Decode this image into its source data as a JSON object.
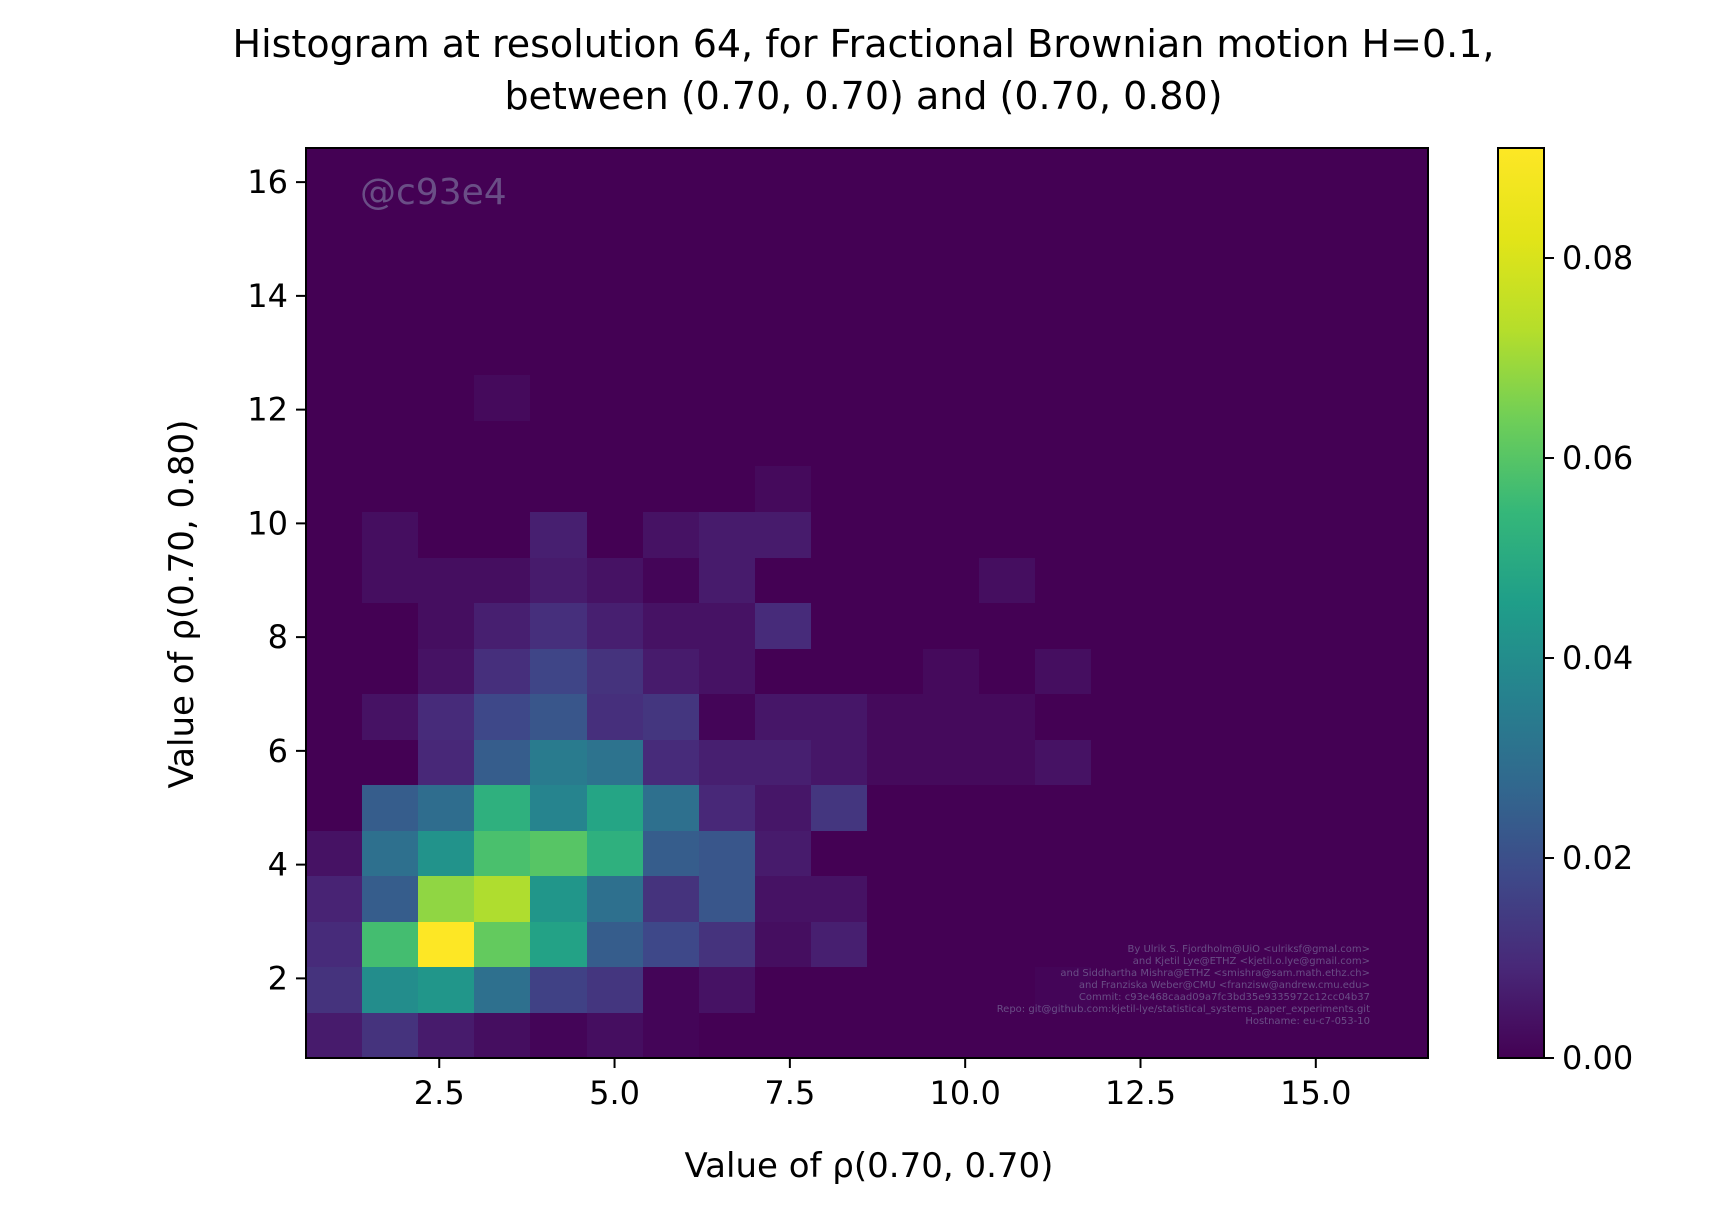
{
  "title_line1": "Histogram at resolution 64, for Fractional Brownian motion H=0.1,",
  "title_line2": "between (0.70, 0.70) and (0.70, 0.80)",
  "watermark": "@c93e4",
  "credits": [
    "By Ulrik S. Fjordholm@UiO <ulriksf@gmal.com>",
    "and Kjetil Lye@ETHZ <kjetil.o.lye@gmail.com>",
    "and Siddhartha Mishra@ETHZ <smishra@sam.math.ethz.ch>",
    "and Franziska Weber@CMU <franzisw@andrew.cmu.edu>",
    "Commit: c93e468caad09a7fc3bd35e9335972c12cc04b37",
    "Repo: git@github.com:kjetil-lye/statistical_systems_paper_experiments.git",
    "Hostname: eu-c7-053-10"
  ],
  "chart_data": {
    "type": "heatmap",
    "xlabel": "Value of ρ(0.70, 0.70)",
    "ylabel": "Value of ρ(0.70, 0.80)",
    "xlim": [
      0.6,
      16.6
    ],
    "ylim": [
      0.6,
      16.6
    ],
    "xticks": [
      "2.5",
      "5.0",
      "7.5",
      "10.0",
      "12.5",
      "15.0"
    ],
    "xtick_values": [
      2.5,
      5.0,
      7.5,
      10.0,
      12.5,
      15.0
    ],
    "yticks": [
      "2",
      "4",
      "6",
      "8",
      "10",
      "12",
      "14",
      "16"
    ],
    "ytick_values": [
      2,
      4,
      6,
      8,
      10,
      12,
      14,
      16
    ],
    "colorbar": {
      "range": [
        0.0,
        0.091
      ],
      "ticks": [
        "0.00",
        "0.02",
        "0.04",
        "0.06",
        "0.08"
      ],
      "tick_values": [
        0.0,
        0.02,
        0.04,
        0.06,
        0.08
      ],
      "colormap": "viridis"
    },
    "bin_width": 0.8,
    "x_bin_start": 0.6,
    "y_bin_start": 0.6,
    "cells": [
      [
        0,
        0,
        0.006
      ],
      [
        1,
        0,
        0.012
      ],
      [
        2,
        0,
        0.006
      ],
      [
        3,
        0,
        0.003
      ],
      [
        4,
        0,
        0.001
      ],
      [
        5,
        0,
        0.003
      ],
      [
        6,
        0,
        0.001
      ],
      [
        0,
        1,
        0.012
      ],
      [
        1,
        1,
        0.04
      ],
      [
        2,
        1,
        0.043
      ],
      [
        3,
        1,
        0.03
      ],
      [
        4,
        1,
        0.016
      ],
      [
        5,
        1,
        0.013
      ],
      [
        6,
        1,
        0.001
      ],
      [
        7,
        1,
        0.004
      ],
      [
        13,
        1,
        0.001
      ],
      [
        0,
        2,
        0.01
      ],
      [
        1,
        2,
        0.057
      ],
      [
        2,
        2,
        0.091
      ],
      [
        3,
        2,
        0.062
      ],
      [
        4,
        2,
        0.047
      ],
      [
        5,
        2,
        0.024
      ],
      [
        6,
        2,
        0.018
      ],
      [
        7,
        2,
        0.012
      ],
      [
        8,
        2,
        0.003
      ],
      [
        9,
        2,
        0.007
      ],
      [
        0,
        3,
        0.008
      ],
      [
        1,
        3,
        0.024
      ],
      [
        2,
        3,
        0.068
      ],
      [
        3,
        3,
        0.072
      ],
      [
        4,
        3,
        0.043
      ],
      [
        5,
        3,
        0.03
      ],
      [
        6,
        3,
        0.012
      ],
      [
        7,
        3,
        0.022
      ],
      [
        8,
        3,
        0.004
      ],
      [
        9,
        3,
        0.004
      ],
      [
        0,
        4,
        0.004
      ],
      [
        1,
        4,
        0.03
      ],
      [
        2,
        4,
        0.042
      ],
      [
        3,
        4,
        0.058
      ],
      [
        4,
        4,
        0.06
      ],
      [
        5,
        4,
        0.052
      ],
      [
        6,
        4,
        0.024
      ],
      [
        7,
        4,
        0.022
      ],
      [
        8,
        4,
        0.006
      ],
      [
        1,
        5,
        0.024
      ],
      [
        2,
        5,
        0.029
      ],
      [
        3,
        5,
        0.052
      ],
      [
        4,
        5,
        0.037
      ],
      [
        5,
        5,
        0.048
      ],
      [
        6,
        5,
        0.03
      ],
      [
        7,
        5,
        0.009
      ],
      [
        8,
        5,
        0.005
      ],
      [
        9,
        5,
        0.013
      ],
      [
        2,
        6,
        0.009
      ],
      [
        3,
        6,
        0.024
      ],
      [
        4,
        6,
        0.034
      ],
      [
        5,
        6,
        0.031
      ],
      [
        6,
        6,
        0.01
      ],
      [
        7,
        6,
        0.007
      ],
      [
        8,
        6,
        0.007
      ],
      [
        9,
        6,
        0.005
      ],
      [
        10,
        6,
        0.002
      ],
      [
        11,
        6,
        0.002
      ],
      [
        12,
        6,
        0.002
      ],
      [
        13,
        6,
        0.004
      ],
      [
        1,
        7,
        0.004
      ],
      [
        2,
        7,
        0.01
      ],
      [
        3,
        7,
        0.018
      ],
      [
        4,
        7,
        0.022
      ],
      [
        5,
        7,
        0.011
      ],
      [
        6,
        7,
        0.013
      ],
      [
        7,
        7,
        0.001
      ],
      [
        8,
        7,
        0.005
      ],
      [
        9,
        7,
        0.005
      ],
      [
        10,
        7,
        0.002
      ],
      [
        11,
        7,
        0.002
      ],
      [
        12,
        7,
        0.002
      ],
      [
        2,
        8,
        0.004
      ],
      [
        3,
        8,
        0.011
      ],
      [
        4,
        8,
        0.017
      ],
      [
        5,
        8,
        0.012
      ],
      [
        6,
        8,
        0.006
      ],
      [
        7,
        8,
        0.004
      ],
      [
        11,
        8,
        0.002
      ],
      [
        13,
        8,
        0.003
      ],
      [
        2,
        9,
        0.003
      ],
      [
        3,
        9,
        0.007
      ],
      [
        4,
        9,
        0.011
      ],
      [
        5,
        9,
        0.007
      ],
      [
        6,
        9,
        0.004
      ],
      [
        7,
        9,
        0.004
      ],
      [
        8,
        9,
        0.01
      ],
      [
        1,
        10,
        0.003
      ],
      [
        2,
        10,
        0.003
      ],
      [
        3,
        10,
        0.003
      ],
      [
        4,
        10,
        0.006
      ],
      [
        5,
        10,
        0.004
      ],
      [
        6,
        10,
        0.001
      ],
      [
        7,
        10,
        0.006
      ],
      [
        12,
        10,
        0.003
      ],
      [
        1,
        11,
        0.003
      ],
      [
        4,
        11,
        0.007
      ],
      [
        6,
        11,
        0.004
      ],
      [
        7,
        11,
        0.006
      ],
      [
        8,
        11,
        0.006
      ],
      [
        8,
        12,
        0.002
      ],
      [
        3,
        14,
        0.002
      ]
    ]
  }
}
